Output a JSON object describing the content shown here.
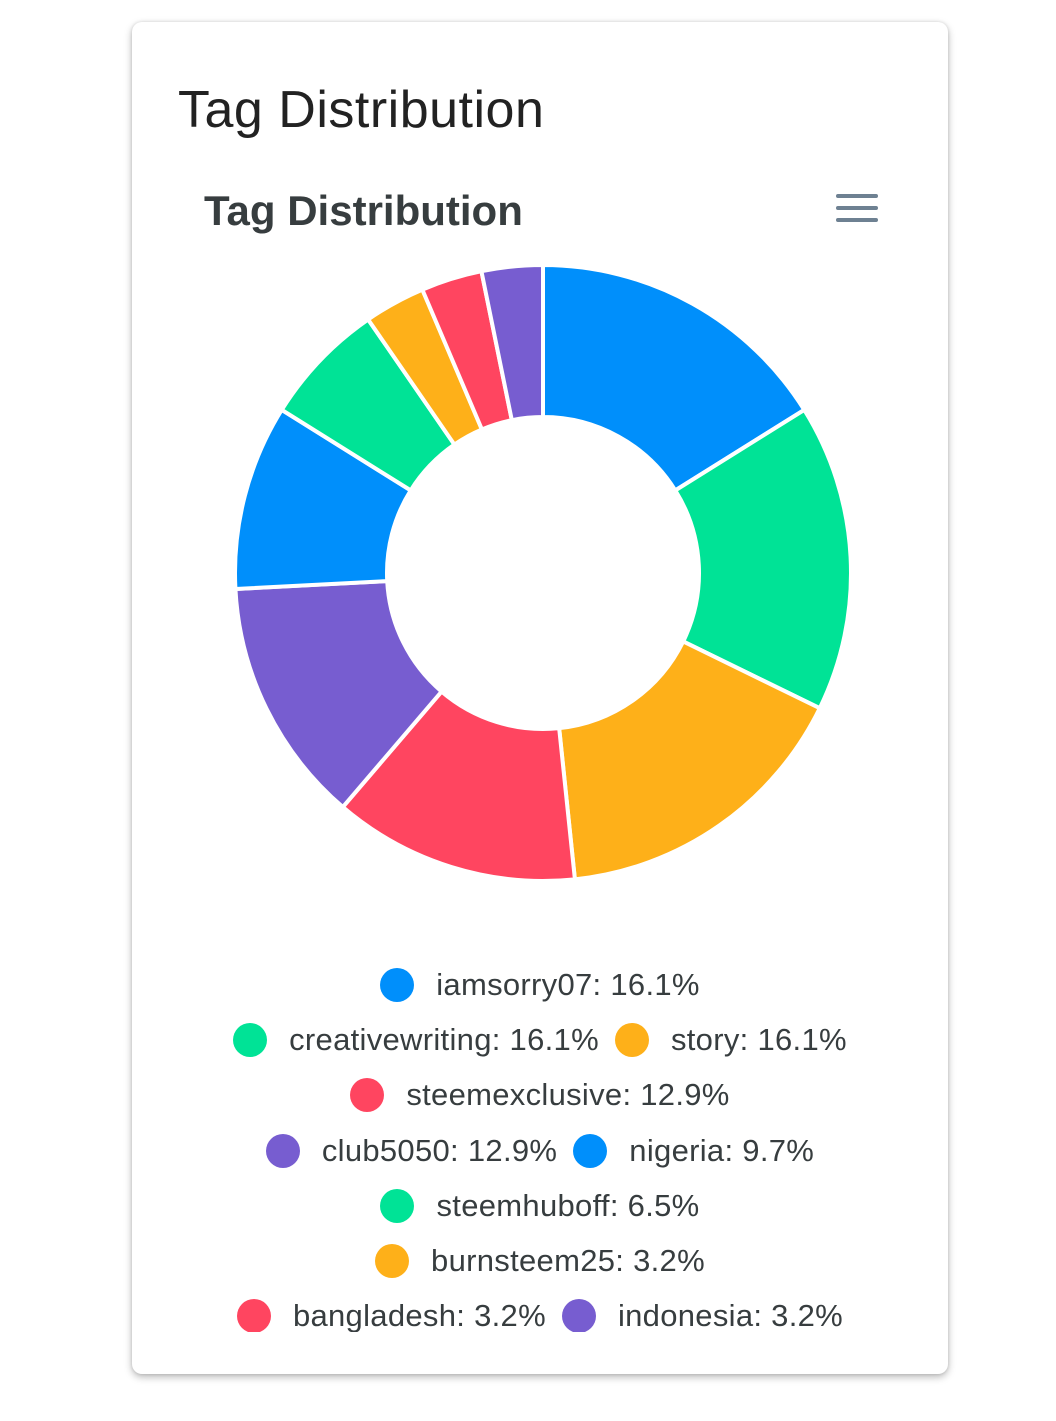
{
  "card": {
    "title": "Tag Distribution"
  },
  "toolbar": {
    "menu_icon": "hamburger-menu-icon"
  },
  "chart_data": {
    "type": "pie",
    "variant": "donut",
    "title": "Tag Distribution",
    "legend_position": "bottom",
    "slices": [
      {
        "label": "iamsorry07",
        "value": 16.1,
        "color": "#008ffb"
      },
      {
        "label": "creativewriting",
        "value": 16.1,
        "color": "#00e396"
      },
      {
        "label": "story",
        "value": 16.1,
        "color": "#feb019"
      },
      {
        "label": "steemexclusive",
        "value": 12.9,
        "color": "#ff4560"
      },
      {
        "label": "club5050",
        "value": 12.9,
        "color": "#775dd0"
      },
      {
        "label": "nigeria",
        "value": 9.7,
        "color": "#008ffb"
      },
      {
        "label": "steemhuboff",
        "value": 6.5,
        "color": "#00e396"
      },
      {
        "label": "burnsteem25",
        "value": 3.2,
        "color": "#feb019"
      },
      {
        "label": "bangladesh",
        "value": 3.2,
        "color": "#ff4560"
      },
      {
        "label": "indonesia",
        "value": 3.2,
        "color": "#775dd0"
      }
    ],
    "legend_rows": [
      [
        0
      ],
      [
        1,
        2
      ],
      [
        3
      ],
      [
        4,
        5
      ],
      [
        6
      ],
      [
        7
      ],
      [
        8,
        9
      ]
    ],
    "legend_items": [
      "iamsorry07: 16.1%",
      "creativewriting: 16.1%",
      "story: 16.1%",
      "steemexclusive: 12.9%",
      "club5050: 12.9%",
      "nigeria: 9.7%",
      "steemhuboff: 6.5%",
      "burnsteem25: 3.2%",
      "bangladesh: 3.2%",
      "indonesia: 3.2%"
    ]
  }
}
